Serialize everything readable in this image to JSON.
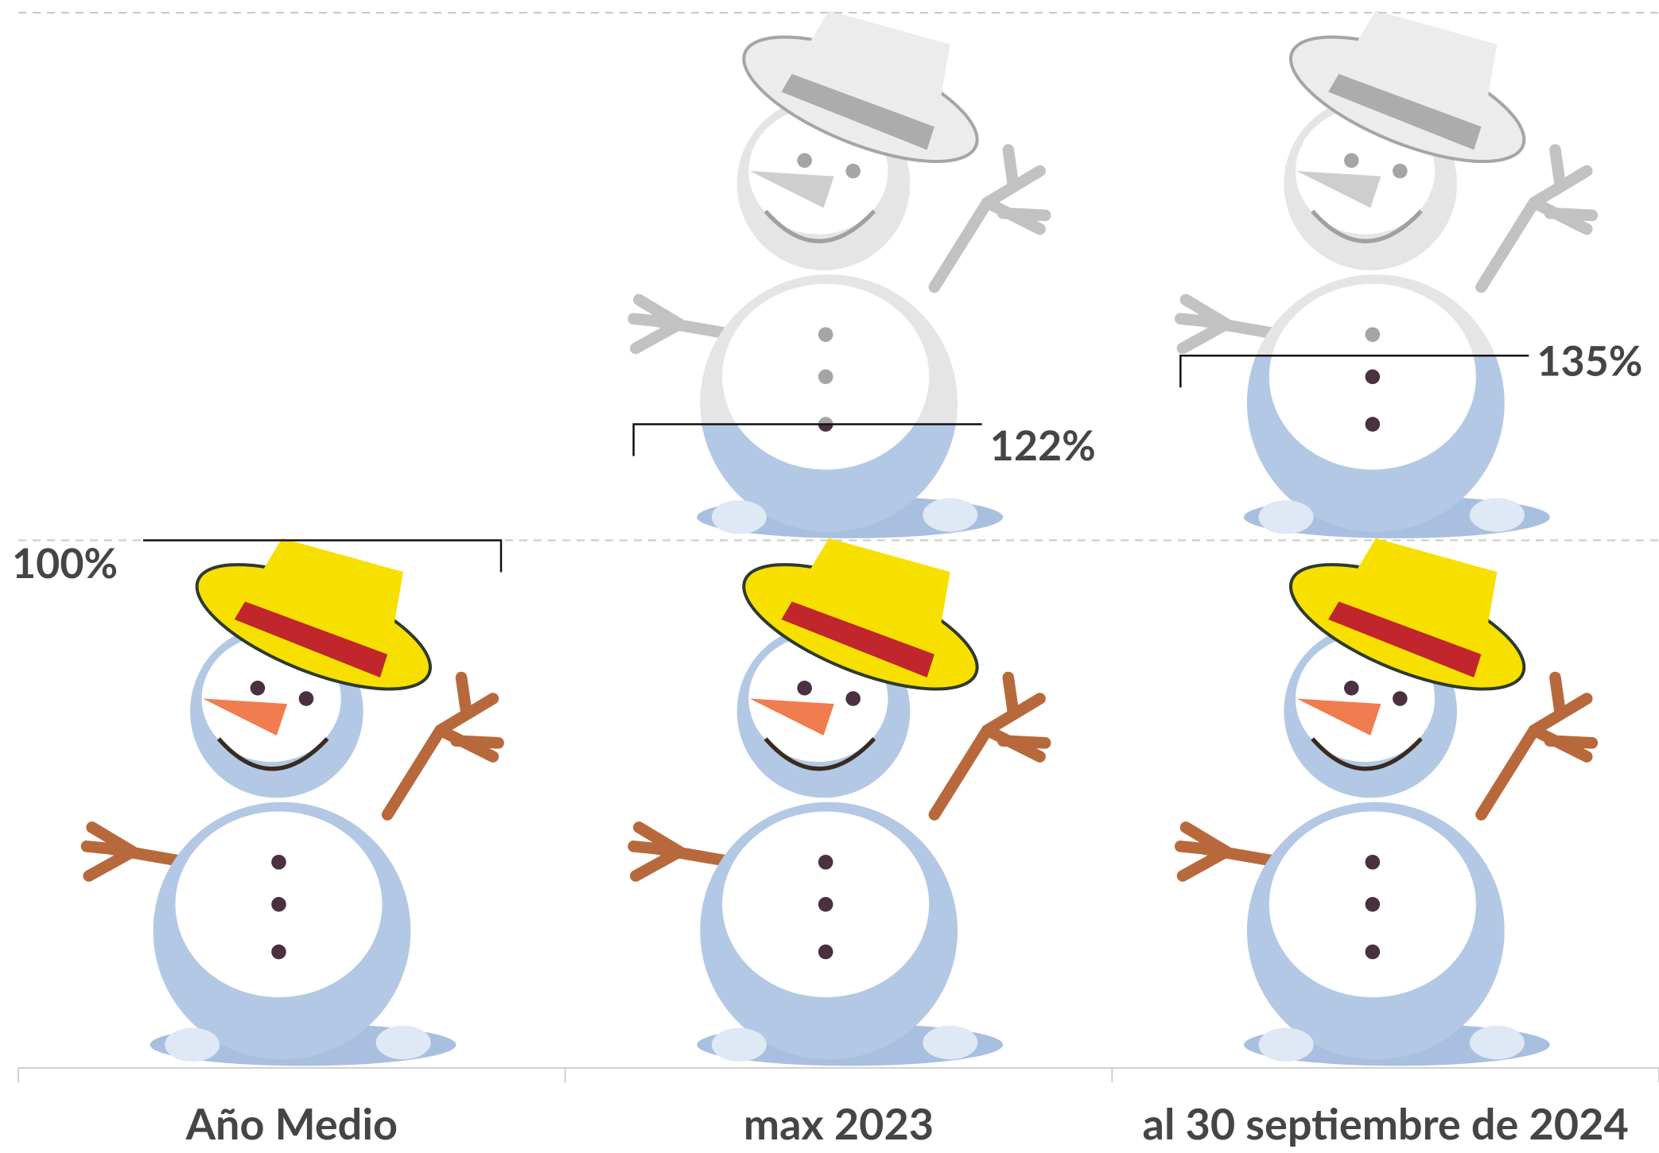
{
  "chart_data": {
    "type": "pictogram",
    "categories": [
      "Año Medio",
      "max 2023",
      "al 30 septiembre de 2024"
    ],
    "values": [
      100,
      122,
      135
    ],
    "value_labels": [
      "100%",
      "122%",
      "135%"
    ],
    "ylim": [
      0,
      200
    ],
    "yticks": [
      100,
      200
    ],
    "grid": true
  }
}
